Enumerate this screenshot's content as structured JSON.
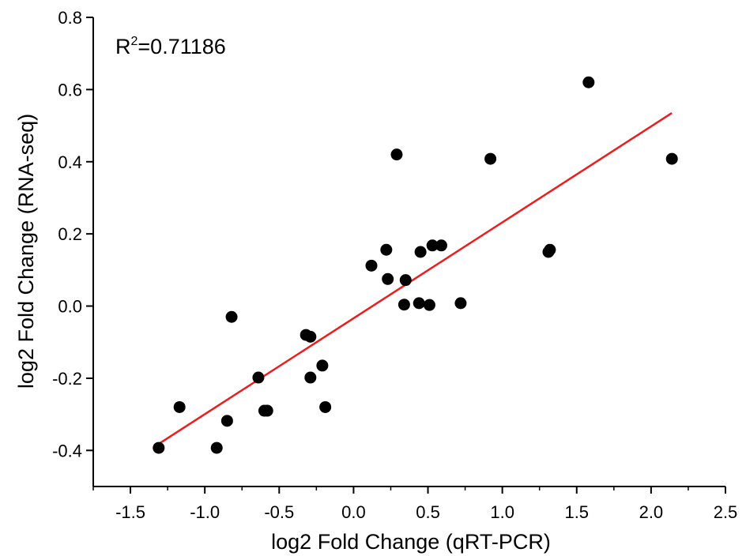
{
  "chart_data": {
    "type": "scatter",
    "title": "",
    "xlabel": "log2 Fold Change (qRT-PCR)",
    "ylabel": "log2 Fold Change (RNA-seq)",
    "xlim": [
      -1.75,
      2.5
    ],
    "ylim": [
      -0.5,
      0.8
    ],
    "x_ticks": [
      -1.5,
      -1.0,
      -0.5,
      0.0,
      0.5,
      1.0,
      1.5,
      2.0,
      2.5
    ],
    "x_tick_labels": [
      "-1.5",
      "-1.0",
      "-0.5",
      "0.0",
      "0.5",
      "1.0",
      "1.5",
      "2.0",
      "2.5"
    ],
    "y_ticks": [
      -0.4,
      -0.2,
      0.0,
      0.2,
      0.4,
      0.6,
      0.8
    ],
    "y_tick_labels": [
      "-0.4",
      "-0.2",
      "0.0",
      "0.2",
      "0.4",
      "0.6",
      "0.8"
    ],
    "grid": false,
    "annotation": {
      "prefix": "R",
      "superscript": "2",
      "value": "=0.71186"
    },
    "point_color": "#000000",
    "fit_color": "#ee1c1c",
    "points": [
      {
        "x": -1.31,
        "y": -0.393
      },
      {
        "x": -1.17,
        "y": -0.28
      },
      {
        "x": -0.92,
        "y": -0.393
      },
      {
        "x": -0.85,
        "y": -0.318
      },
      {
        "x": -0.82,
        "y": -0.03
      },
      {
        "x": -0.64,
        "y": -0.198
      },
      {
        "x": -0.6,
        "y": -0.29
      },
      {
        "x": -0.58,
        "y": -0.29
      },
      {
        "x": -0.32,
        "y": -0.08
      },
      {
        "x": -0.29,
        "y": -0.085
      },
      {
        "x": -0.29,
        "y": -0.198
      },
      {
        "x": -0.21,
        "y": -0.165
      },
      {
        "x": -0.19,
        "y": -0.28
      },
      {
        "x": 0.12,
        "y": 0.112
      },
      {
        "x": 0.22,
        "y": 0.156
      },
      {
        "x": 0.23,
        "y": 0.075
      },
      {
        "x": 0.29,
        "y": 0.42
      },
      {
        "x": 0.34,
        "y": 0.004
      },
      {
        "x": 0.35,
        "y": 0.072
      },
      {
        "x": 0.44,
        "y": 0.008
      },
      {
        "x": 0.45,
        "y": 0.15
      },
      {
        "x": 0.51,
        "y": 0.003
      },
      {
        "x": 0.53,
        "y": 0.168
      },
      {
        "x": 0.59,
        "y": 0.168
      },
      {
        "x": 0.72,
        "y": 0.008
      },
      {
        "x": 0.92,
        "y": 0.408
      },
      {
        "x": 1.31,
        "y": 0.15
      },
      {
        "x": 1.32,
        "y": 0.156
      },
      {
        "x": 1.58,
        "y": 0.62
      },
      {
        "x": 2.14,
        "y": 0.408
      }
    ],
    "fit_line": {
      "x_start": -1.31,
      "y_start": -0.382,
      "x_end": 2.14,
      "y_end": 0.535
    }
  }
}
